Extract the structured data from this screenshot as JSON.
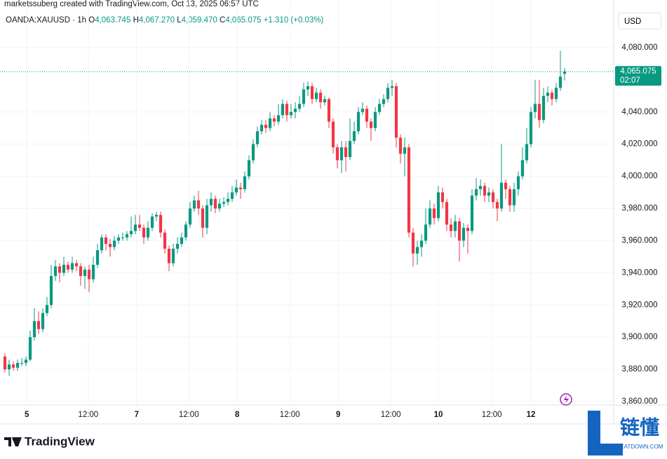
{
  "header": {
    "credit": "marketssuberg created with TradingView.com, Oct 13, 2025 06:57 UTC",
    "symbol": "OANDA:XAUUSD · 1h",
    "ohlc": [
      {
        "key": "O",
        "value": "4,063.745"
      },
      {
        "key": "H",
        "value": "4,067.270"
      },
      {
        "key": "L",
        "value": "4,059.470"
      },
      {
        "key": "C",
        "value": "4,065.075"
      }
    ],
    "change": "+1.310 (+0.03%)",
    "currency": "USD"
  },
  "footer": {
    "logo": "TradingView",
    "watermark": "链懂",
    "watermark_sub": "NEATDOWN.COM"
  },
  "chart_data": {
    "type": "candlestick",
    "up_color": "#089981",
    "down_color": "#f23645",
    "grid": true,
    "xlim": [
      -1.17,
      144.67
    ],
    "ylim": [
      3857.8,
      4109.6
    ],
    "yticks": [
      {
        "value": 3860,
        "label": "3,860.000"
      },
      {
        "value": 3880,
        "label": "3,880.000"
      },
      {
        "value": 3900,
        "label": "3,900.000"
      },
      {
        "value": 3920,
        "label": "3,920.000"
      },
      {
        "value": 3940,
        "label": "3,940.000"
      },
      {
        "value": 3960,
        "label": "3,960.000"
      },
      {
        "value": 3980,
        "label": "3,980.000"
      },
      {
        "value": 4000,
        "label": "4,000.000"
      },
      {
        "value": 4020,
        "label": "4,020.000"
      },
      {
        "value": 4040,
        "label": "4,040.000"
      },
      {
        "value": 4080,
        "label": "4,080.000"
      }
    ],
    "xticks": [
      {
        "value": 5.2,
        "label": "5"
      },
      {
        "value": 19.8,
        "label": "12:00"
      },
      {
        "value": 31.3,
        "label": "7"
      },
      {
        "value": 43.7,
        "label": "12:00"
      },
      {
        "value": 55.2,
        "label": "8"
      },
      {
        "value": 67.7,
        "label": "12:00"
      },
      {
        "value": 79.2,
        "label": "9"
      },
      {
        "value": 91.7,
        "label": "12:00"
      },
      {
        "value": 103,
        "label": "10"
      },
      {
        "value": 115.7,
        "label": "12:00"
      },
      {
        "value": 125,
        "label": "12"
      }
    ],
    "last_price": {
      "value": 4065.075,
      "label": "4,065.075"
    },
    "countdown": "02:07",
    "open": [
      3888,
      3880,
      3883,
      3881,
      3884,
      3884,
      3886,
      3900,
      3910,
      3905,
      3915,
      3920,
      3938,
      3944,
      3940,
      3945,
      3942,
      3946,
      3944,
      3938,
      3942,
      3936,
      3945,
      3954,
      3962,
      3958,
      3956,
      3960,
      3962,
      3962,
      3964,
      3966,
      3970,
      3968,
      3962,
      3968,
      3975,
      3976,
      3965,
      3955,
      3946,
      3955,
      3958,
      3962,
      3970,
      3980,
      3985,
      3980,
      3968,
      3982,
      3986,
      3980,
      3983,
      3984,
      3986,
      3990,
      3993,
      3992,
      4000,
      4010,
      4020,
      4028,
      4032,
      4030,
      4036,
      4034,
      4038,
      4045,
      4038,
      4040,
      4042,
      4045,
      4054,
      4056,
      4048,
      4052,
      4046,
      4048,
      4034,
      4018,
      4010,
      4018,
      4012,
      4022,
      4028,
      4040,
      4042,
      4034,
      4030,
      4040,
      4045,
      4048,
      4055,
      4056,
      4024,
      4014,
      4018,
      3965,
      3952,
      3956,
      3960,
      3970,
      3980,
      3974,
      3990,
      3984,
      3970,
      3966,
      3972,
      3960,
      3968,
      3966,
      3988,
      3992,
      3994,
      3988,
      3990,
      3984,
      3980,
      3996,
      3992,
      3982,
      3992,
      4000,
      4010,
      4020,
      4040,
      4045,
      4035,
      4050,
      4052,
      4048,
      4055,
      4063.745
    ],
    "high": [
      3890,
      3886,
      3885,
      3886,
      3887,
      3888,
      3904,
      3918,
      3916,
      3918,
      3925,
      3945,
      3948,
      3946,
      3950,
      3947,
      3950,
      3948,
      3946,
      3944,
      3945,
      3950,
      3958,
      3964,
      3964,
      3961,
      3963,
      3964,
      3965,
      3966,
      3975,
      3976,
      3976,
      3970,
      3972,
      3977,
      3978,
      3978,
      3967,
      3957,
      3958,
      3962,
      3965,
      3972,
      3984,
      3988,
      3991,
      3982,
      3986,
      3990,
      3988,
      3986,
      3987,
      3990,
      3994,
      3998,
      3996,
      4003,
      4013,
      4023,
      4031,
      4035,
      4035,
      4040,
      4038,
      4045,
      4048,
      4047,
      4045,
      4046,
      4050,
      4058,
      4059,
      4058,
      4055,
      4054,
      4050,
      4049,
      4036,
      4020,
      4022,
      4022,
      4036,
      4034,
      4043,
      4046,
      4044,
      4036,
      4043,
      4048,
      4051,
      4058,
      4060,
      4058,
      4026,
      4024,
      4020,
      3968,
      3960,
      3964,
      3980,
      3985,
      3983,
      3994,
      3993,
      3986,
      3974,
      3976,
      3974,
      3971,
      3970,
      3992,
      3999,
      3998,
      3996,
      3993,
      3992,
      3986,
      4020,
      3998,
      3994,
      3996,
      4003,
      4018,
      4030,
      4043,
      4060,
      4060,
      4055,
      4056,
      4054,
      4058,
      4078,
      4067.27
    ],
    "low": [
      3878,
      3876,
      3879,
      3879,
      3882,
      3882,
      3885,
      3898,
      3902,
      3903,
      3913,
      3918,
      3935,
      3934,
      3938,
      3940,
      3940,
      3941,
      3932,
      3930,
      3928,
      3934,
      3943,
      3952,
      3954,
      3950,
      3954,
      3958,
      3960,
      3960,
      3962,
      3964,
      3966,
      3958,
      3960,
      3966,
      3972,
      3962,
      3952,
      3941,
      3944,
      3952,
      3956,
      3960,
      3968,
      3978,
      3976,
      3962,
      3964,
      3978,
      3977,
      3978,
      3981,
      3982,
      3984,
      3988,
      3986,
      3990,
      3998,
      4008,
      4018,
      4026,
      4027,
      4028,
      4031,
      4032,
      4036,
      4034,
      4036,
      4036,
      4040,
      4043,
      4050,
      4045,
      4046,
      4042,
      4044,
      4030,
      4014,
      4005,
      4002,
      4003,
      4010,
      4020,
      4026,
      4038,
      4030,
      4022,
      4028,
      4038,
      4043,
      4046,
      4050,
      4018,
      4008,
      4000,
      3962,
      3944,
      3945,
      3950,
      3958,
      3968,
      3970,
      3972,
      3980,
      3966,
      3962,
      3962,
      3947,
      3956,
      3952,
      3964,
      3985,
      3988,
      3984,
      3984,
      3980,
      3972,
      3978,
      3986,
      3978,
      3978,
      3988,
      3998,
      4008,
      4018,
      4036,
      4030,
      4033,
      4046,
      4044,
      4046,
      4053,
      4059.47
    ],
    "close": [
      3880,
      3883,
      3881,
      3884,
      3884,
      3886,
      3900,
      3910,
      3905,
      3915,
      3920,
      3938,
      3944,
      3940,
      3945,
      3942,
      3946,
      3944,
      3938,
      3942,
      3936,
      3945,
      3954,
      3962,
      3958,
      3956,
      3960,
      3962,
      3962,
      3964,
      3966,
      3970,
      3968,
      3962,
      3968,
      3975,
      3976,
      3965,
      3955,
      3946,
      3955,
      3958,
      3962,
      3970,
      3980,
      3985,
      3980,
      3968,
      3982,
      3986,
      3980,
      3983,
      3984,
      3986,
      3990,
      3993,
      3992,
      4000,
      4010,
      4020,
      4028,
      4032,
      4030,
      4036,
      4034,
      4038,
      4045,
      4038,
      4040,
      4042,
      4045,
      4054,
      4056,
      4048,
      4052,
      4046,
      4048,
      4034,
      4018,
      4010,
      4018,
      4012,
      4022,
      4028,
      4040,
      4042,
      4034,
      4030,
      4040,
      4045,
      4048,
      4055,
      4056,
      4024,
      4014,
      4018,
      3965,
      3952,
      3956,
      3960,
      3970,
      3980,
      3974,
      3990,
      3984,
      3970,
      3966,
      3972,
      3960,
      3968,
      3966,
      3988,
      3992,
      3994,
      3988,
      3990,
      3984,
      3980,
      3996,
      3992,
      3982,
      3992,
      4000,
      4010,
      4020,
      4040,
      4045,
      4035,
      4050,
      4052,
      4048,
      4055,
      4062,
      4065.075
    ]
  }
}
